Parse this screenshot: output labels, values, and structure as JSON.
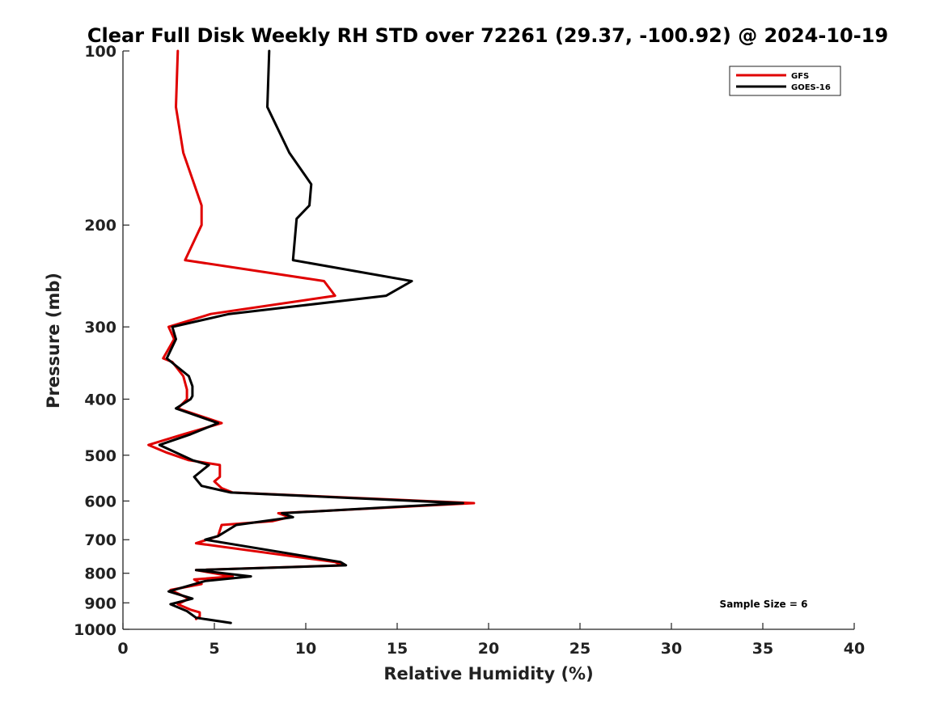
{
  "chart_data": {
    "type": "line",
    "title": "Clear Full Disk Weekly RH STD over 72261 (29.37, -100.92) @ 2024-10-19",
    "xlabel": "Relative Humidity (%)",
    "ylabel": "Pressure (mb)",
    "xlim": [
      0,
      40
    ],
    "ylim": [
      1000,
      100
    ],
    "yscale": "log",
    "x_ticks": [
      0,
      5,
      10,
      15,
      20,
      25,
      30,
      35,
      40
    ],
    "y_ticks": [
      100,
      200,
      300,
      400,
      500,
      600,
      700,
      800,
      900,
      1000
    ],
    "grid": false,
    "legend_position": "top-right",
    "annotation": "Sample Size = 6",
    "series": [
      {
        "name": "GFS",
        "color": "#e00000",
        "points": [
          [
            3.0,
            100
          ],
          [
            2.9,
            125
          ],
          [
            3.3,
            150
          ],
          [
            4.3,
            185
          ],
          [
            4.3,
            200
          ],
          [
            3.4,
            230
          ],
          [
            11.0,
            250
          ],
          [
            11.6,
            265
          ],
          [
            4.8,
            285
          ],
          [
            2.5,
            300
          ],
          [
            2.8,
            315
          ],
          [
            2.2,
            340
          ],
          [
            2.7,
            345
          ],
          [
            3.3,
            365
          ],
          [
            3.5,
            385
          ],
          [
            3.5,
            400
          ],
          [
            3.0,
            415
          ],
          [
            5.4,
            440
          ],
          [
            3.3,
            460
          ],
          [
            1.4,
            480
          ],
          [
            2.4,
            495
          ],
          [
            3.6,
            510
          ],
          [
            5.3,
            520
          ],
          [
            5.3,
            545
          ],
          [
            5.0,
            555
          ],
          [
            5.4,
            570
          ],
          [
            6.0,
            580
          ],
          [
            19.2,
            605
          ],
          [
            8.5,
            630
          ],
          [
            9.1,
            640
          ],
          [
            8.2,
            650
          ],
          [
            5.4,
            660
          ],
          [
            5.2,
            690
          ],
          [
            4.0,
            710
          ],
          [
            11.6,
            765
          ],
          [
            12.0,
            775
          ],
          [
            4.0,
            790
          ],
          [
            6.0,
            810
          ],
          [
            3.9,
            820
          ],
          [
            4.3,
            835
          ],
          [
            2.6,
            855
          ],
          [
            3.6,
            885
          ],
          [
            3.0,
            905
          ],
          [
            3.7,
            925
          ],
          [
            4.2,
            935
          ],
          [
            4.2,
            950
          ],
          [
            4.0,
            960
          ]
        ]
      },
      {
        "name": "GOES-16",
        "color": "#000000",
        "points": [
          [
            8.0,
            100
          ],
          [
            7.9,
            125
          ],
          [
            9.1,
            150
          ],
          [
            10.3,
            170
          ],
          [
            10.2,
            185
          ],
          [
            9.5,
            195
          ],
          [
            9.3,
            230
          ],
          [
            15.8,
            250
          ],
          [
            14.4,
            265
          ],
          [
            5.8,
            285
          ],
          [
            2.7,
            300
          ],
          [
            2.9,
            315
          ],
          [
            2.4,
            340
          ],
          [
            3.6,
            365
          ],
          [
            3.8,
            380
          ],
          [
            3.8,
            395
          ],
          [
            3.7,
            400
          ],
          [
            2.9,
            415
          ],
          [
            5.2,
            440
          ],
          [
            3.7,
            460
          ],
          [
            2.0,
            480
          ],
          [
            3.8,
            510
          ],
          [
            4.7,
            520
          ],
          [
            3.9,
            545
          ],
          [
            4.3,
            565
          ],
          [
            5.9,
            580
          ],
          [
            18.6,
            605
          ],
          [
            8.7,
            630
          ],
          [
            9.3,
            640
          ],
          [
            6.2,
            660
          ],
          [
            5.2,
            690
          ],
          [
            4.5,
            700
          ],
          [
            11.9,
            765
          ],
          [
            12.2,
            775
          ],
          [
            4.0,
            790
          ],
          [
            7.0,
            810
          ],
          [
            4.5,
            825
          ],
          [
            2.5,
            860
          ],
          [
            3.8,
            885
          ],
          [
            2.6,
            905
          ],
          [
            3.5,
            930
          ],
          [
            4.0,
            955
          ],
          [
            5.9,
            975
          ]
        ]
      }
    ]
  }
}
